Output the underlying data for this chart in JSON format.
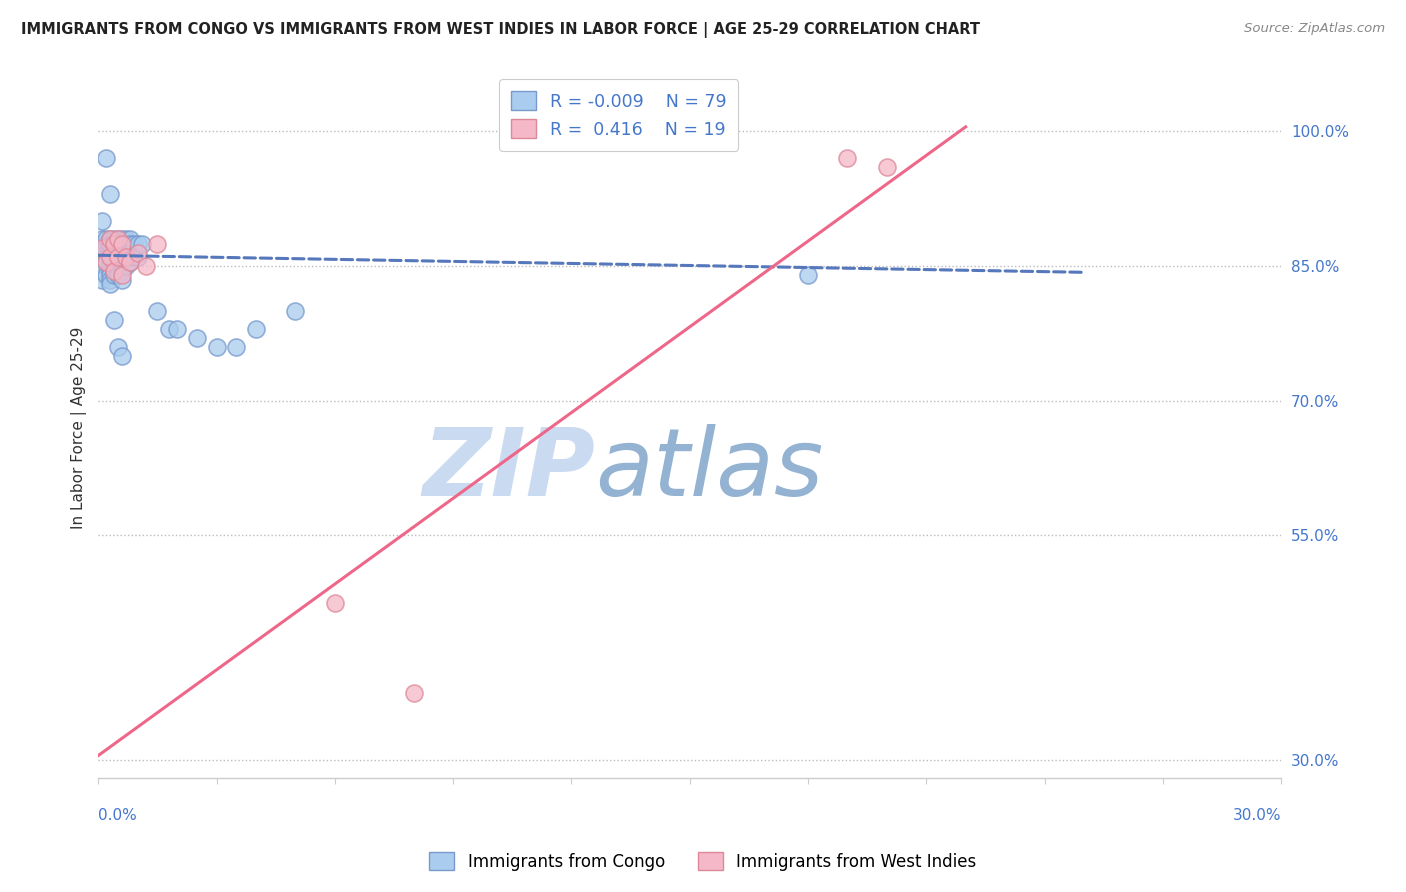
{
  "title": "IMMIGRANTS FROM CONGO VS IMMIGRANTS FROM WEST INDIES IN LABOR FORCE | AGE 25-29 CORRELATION CHART",
  "source": "Source: ZipAtlas.com",
  "ylabel": "In Labor Force | Age 25-29",
  "xlim": [
    0.0,
    0.3
  ],
  "ylim": [
    0.28,
    1.06
  ],
  "congo_R": -0.009,
  "congo_N": 79,
  "west_indies_R": 0.416,
  "west_indies_N": 19,
  "congo_color": "#aaccee",
  "congo_edge_color": "#7799cc",
  "west_indies_color": "#f5b8c8",
  "west_indies_edge_color": "#dd8899",
  "trend_congo_color": "#5577bb",
  "trend_west_indies_color": "#ee6688",
  "background_color": "#ffffff",
  "grid_color": "#bbbbbb",
  "title_color": "#222222",
  "watermark_zip_color": "#c5d8f0",
  "watermark_atlas_color": "#88aacc",
  "legend_R_color": "#4477cc",
  "axis_label_color": "#4477cc",
  "ytick_values": [
    0.3,
    0.55,
    0.7,
    0.85,
    1.0
  ],
  "ytick_labels": [
    "30.0%",
    "55.0%",
    "70.0%",
    "85.0%",
    "100.0%"
  ],
  "congo_scatter_x": [
    0.001,
    0.001,
    0.001,
    0.001,
    0.001,
    0.001,
    0.001,
    0.002,
    0.002,
    0.002,
    0.002,
    0.002,
    0.002,
    0.002,
    0.003,
    0.003,
    0.003,
    0.003,
    0.003,
    0.003,
    0.003,
    0.003,
    0.003,
    0.003,
    0.003,
    0.003,
    0.004,
    0.004,
    0.004,
    0.004,
    0.004,
    0.004,
    0.004,
    0.004,
    0.004,
    0.005,
    0.005,
    0.005,
    0.005,
    0.005,
    0.005,
    0.005,
    0.005,
    0.005,
    0.006,
    0.006,
    0.006,
    0.006,
    0.006,
    0.006,
    0.006,
    0.007,
    0.007,
    0.007,
    0.007,
    0.007,
    0.008,
    0.008,
    0.008,
    0.008,
    0.009,
    0.009,
    0.01,
    0.01,
    0.011,
    0.015,
    0.018,
    0.02,
    0.025,
    0.03,
    0.035,
    0.04,
    0.05,
    0.18,
    0.002,
    0.003,
    0.004,
    0.005,
    0.006
  ],
  "congo_scatter_y": [
    0.875,
    0.88,
    0.86,
    0.855,
    0.9,
    0.845,
    0.835,
    0.875,
    0.88,
    0.87,
    0.865,
    0.86,
    0.855,
    0.84,
    0.875,
    0.88,
    0.875,
    0.87,
    0.865,
    0.86,
    0.85,
    0.845,
    0.84,
    0.835,
    0.83,
    0.875,
    0.88,
    0.875,
    0.87,
    0.865,
    0.86,
    0.855,
    0.85,
    0.845,
    0.84,
    0.88,
    0.875,
    0.87,
    0.865,
    0.86,
    0.855,
    0.85,
    0.845,
    0.84,
    0.88,
    0.875,
    0.87,
    0.865,
    0.855,
    0.845,
    0.835,
    0.88,
    0.875,
    0.87,
    0.86,
    0.85,
    0.88,
    0.875,
    0.865,
    0.855,
    0.875,
    0.86,
    0.875,
    0.86,
    0.875,
    0.8,
    0.78,
    0.78,
    0.77,
    0.76,
    0.76,
    0.78,
    0.8,
    0.84,
    0.97,
    0.93,
    0.79,
    0.76,
    0.75
  ],
  "west_indies_scatter_x": [
    0.001,
    0.002,
    0.003,
    0.003,
    0.004,
    0.004,
    0.005,
    0.005,
    0.006,
    0.006,
    0.007,
    0.008,
    0.01,
    0.012,
    0.015,
    0.19,
    0.2,
    0.06,
    0.08
  ],
  "west_indies_scatter_y": [
    0.87,
    0.855,
    0.88,
    0.86,
    0.875,
    0.845,
    0.88,
    0.86,
    0.875,
    0.84,
    0.86,
    0.855,
    0.865,
    0.85,
    0.875,
    0.97,
    0.96,
    0.475,
    0.375
  ],
  "congo_trend_x0": 0.0,
  "congo_trend_y0": 0.862,
  "congo_trend_x1": 0.25,
  "congo_trend_y1": 0.843,
  "wi_trend_x0": 0.0,
  "wi_trend_y0": 0.305,
  "wi_trend_x1": 0.22,
  "wi_trend_y1": 1.005
}
